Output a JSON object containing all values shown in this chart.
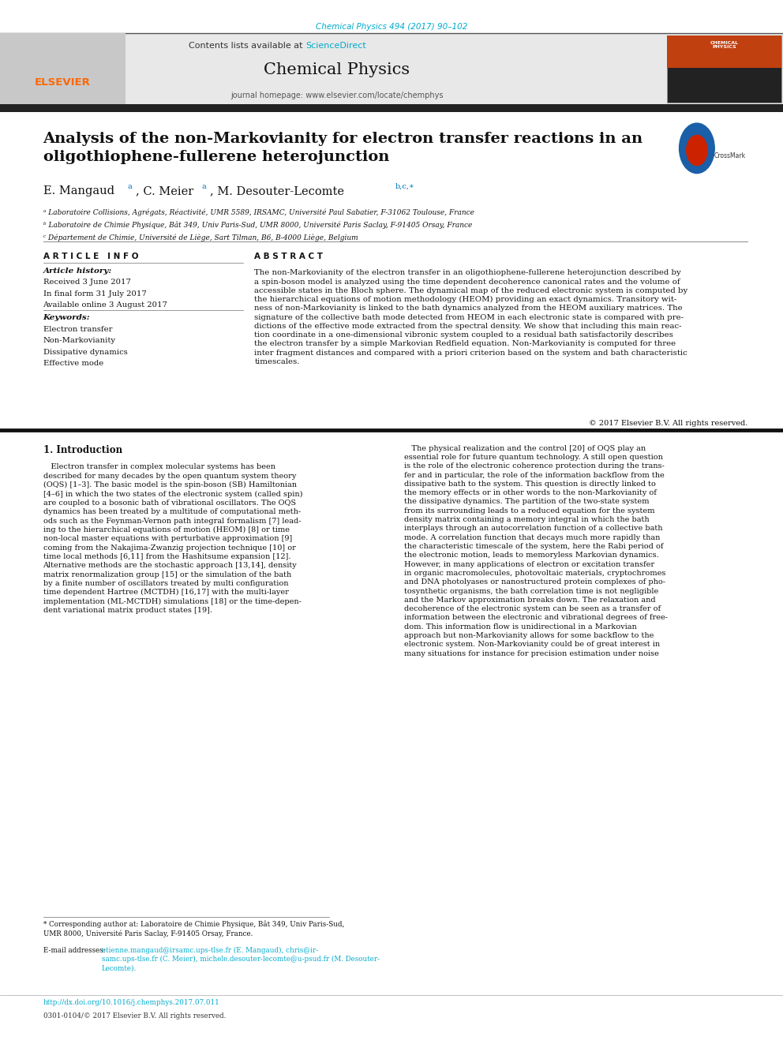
{
  "page_width": 9.92,
  "page_height": 13.23,
  "background": "#ffffff",
  "top_link_text": "Chemical Physics 494 (2017) 90–102",
  "top_link_color": "#00aacc",
  "header_bg": "#e8e8e8",
  "header_contents_text": "Contents lists available at ",
  "header_sciencedirect": "ScienceDirect",
  "header_sciencedirect_color": "#00aacc",
  "header_journal_title": "Chemical Physics",
  "header_homepage_text": "journal homepage: www.elsevier.com/locate/chemphys",
  "elsevier_color": "#ff6600",
  "thick_bar_color": "#222222",
  "article_title": "Analysis of the non-Markovianity for electron transfer reactions in an\noligothiophene-fullerene heterojunction",
  "affil_a": "ᵃ Laboratoire Collisions, Agrégats, Réactivité, UMR 5589, IRSAMC, Université Paul Sabatier, F-31062 Toulouse, France",
  "affil_b": "ᵇ Laboratoire de Chimie Physique, Bât 349, Univ Paris-Sud, UMR 8000, Université Paris Saclay, F-91405 Orsay, France",
  "affil_c": "ᶜ Département de Chimie, Université de Liège, Sart Tilman, B6, B-4000 Liège, Belgium",
  "article_info_header": "A R T I C L E   I N F O",
  "article_history_label": "Article history:",
  "received": "Received 3 June 2017",
  "final_form": "In final form 31 July 2017",
  "available": "Available online 3 August 2017",
  "keywords_label": "Keywords:",
  "keyword1": "Electron transfer",
  "keyword2": "Non-Markovianity",
  "keyword3": "Dissipative dynamics",
  "keyword4": "Effective mode",
  "abstract_header": "A B S T R A C T",
  "abstract_text": "The non-Markovianity of the electron transfer in an oligothiophene-fullerene heterojunction described by\na spin-boson model is analyzed using the time dependent decoherence canonical rates and the volume of\naccessible states in the Bloch sphere. The dynamical map of the reduced electronic system is computed by\nthe hierarchical equations of motion methodology (HEOM) providing an exact dynamics. Transitory wit-\nness of non-Markovianity is linked to the bath dynamics analyzed from the HEOM auxiliary matrices. The\nsignature of the collective bath mode detected from HEOM in each electronic state is compared with pre-\ndictions of the effective mode extracted from the spectral density. We show that including this main reac-\ntion coordinate in a one-dimensional vibronic system coupled to a residual bath satisfactorily describes\nthe electron transfer by a simple Markovian Redfield equation. Non-Markovianity is computed for three\ninter fragment distances and compared with a priori criterion based on the system and bath characteristic\ntimescales.",
  "copyright_text": "© 2017 Elsevier B.V. All rights reserved.",
  "section1_title": "1. Introduction",
  "intro_left": "   Electron transfer in complex molecular systems has been\ndescribed for many decades by the open quantum system theory\n(OQS) [1–3]. The basic model is the spin-boson (SB) Hamiltonian\n[4–6] in which the two states of the electronic system (called spin)\nare coupled to a bosonic bath of vibrational oscillators. The OQS\ndynamics has been treated by a multitude of computational meth-\nods such as the Feynman-Vernon path integral formalism [7] lead-\ning to the hierarchical equations of motion (HEOM) [8] or time\nnon-local master equations with perturbative approximation [9]\ncoming from the Nakajima-Zwanzig projection technique [10] or\ntime local methods [6,11] from the Hashitsume expansion [12].\nAlternative methods are the stochastic approach [13,14], density\nmatrix renormalization group [15] or the simulation of the bath\nby a finite number of oscillators treated by multi configuration\ntime dependent Hartree (MCTDH) [16,17] with the multi-layer\nimplementation (ML-MCTDH) simulations [18] or the time-depen-\ndent variational matrix product states [19].",
  "intro_right": "   The physical realization and the control [20] of OQS play an\nessential role for future quantum technology. A still open question\nis the role of the electronic coherence protection during the trans-\nfer and in particular, the role of the information backflow from the\ndissipative bath to the system. This question is directly linked to\nthe memory effects or in other words to the non-Markovianity of\nthe dissipative dynamics. The partition of the two-state system\nfrom its surrounding leads to a reduced equation for the system\ndensity matrix containing a memory integral in which the bath\ninterplays through an autocorrelation function of a collective bath\nmode. A correlation function that decays much more rapidly than\nthe characteristic timescale of the system, here the Rabi period of\nthe electronic motion, leads to memoryless Markovian dynamics.\nHowever, in many applications of electron or excitation transfer\nin organic macromolecules, photovoltaic materials, cryptochromes\nand DNA photolyases or nanostructured protein complexes of pho-\ntosynthetic organisms, the bath correlation time is not negligible\nand the Markov approximation breaks down. The relaxation and\ndecoherence of the electronic system can be seen as a transfer of\ninformation between the electronic and vibrational degrees of free-\ndom. This information flow is unidirectional in a Markovian\napproach but non-Markovianity allows for some backflow to the\nelectronic system. Non-Markovianity could be of great interest in\nmany situations for instance for precision estimation under noise",
  "footnote_star": "* Corresponding author at: Laboratoire de Chimie Physique, Bât 349, Univ Paris-Sud,\nUMR 8000, Université Paris Saclay, F-91405 Orsay, France.",
  "footnote_email_label": "E-mail addresses: ",
  "footnote_email_body": "etienne.mangaud@irsamc.ups-tlse.fr (E. Mangaud), chris@ir-\nsamc.ups-tlse.fr (C. Meier), michele.desouter-lecomte@u-psud.fr (M. Desouter-\nLecomte).",
  "doi_text": "http://dx.doi.org/10.1016/j.chemphys.2017.07.011",
  "doi_color": "#00aacc",
  "issn_text": "0301-0104/© 2017 Elsevier B.V. All rights reserved."
}
